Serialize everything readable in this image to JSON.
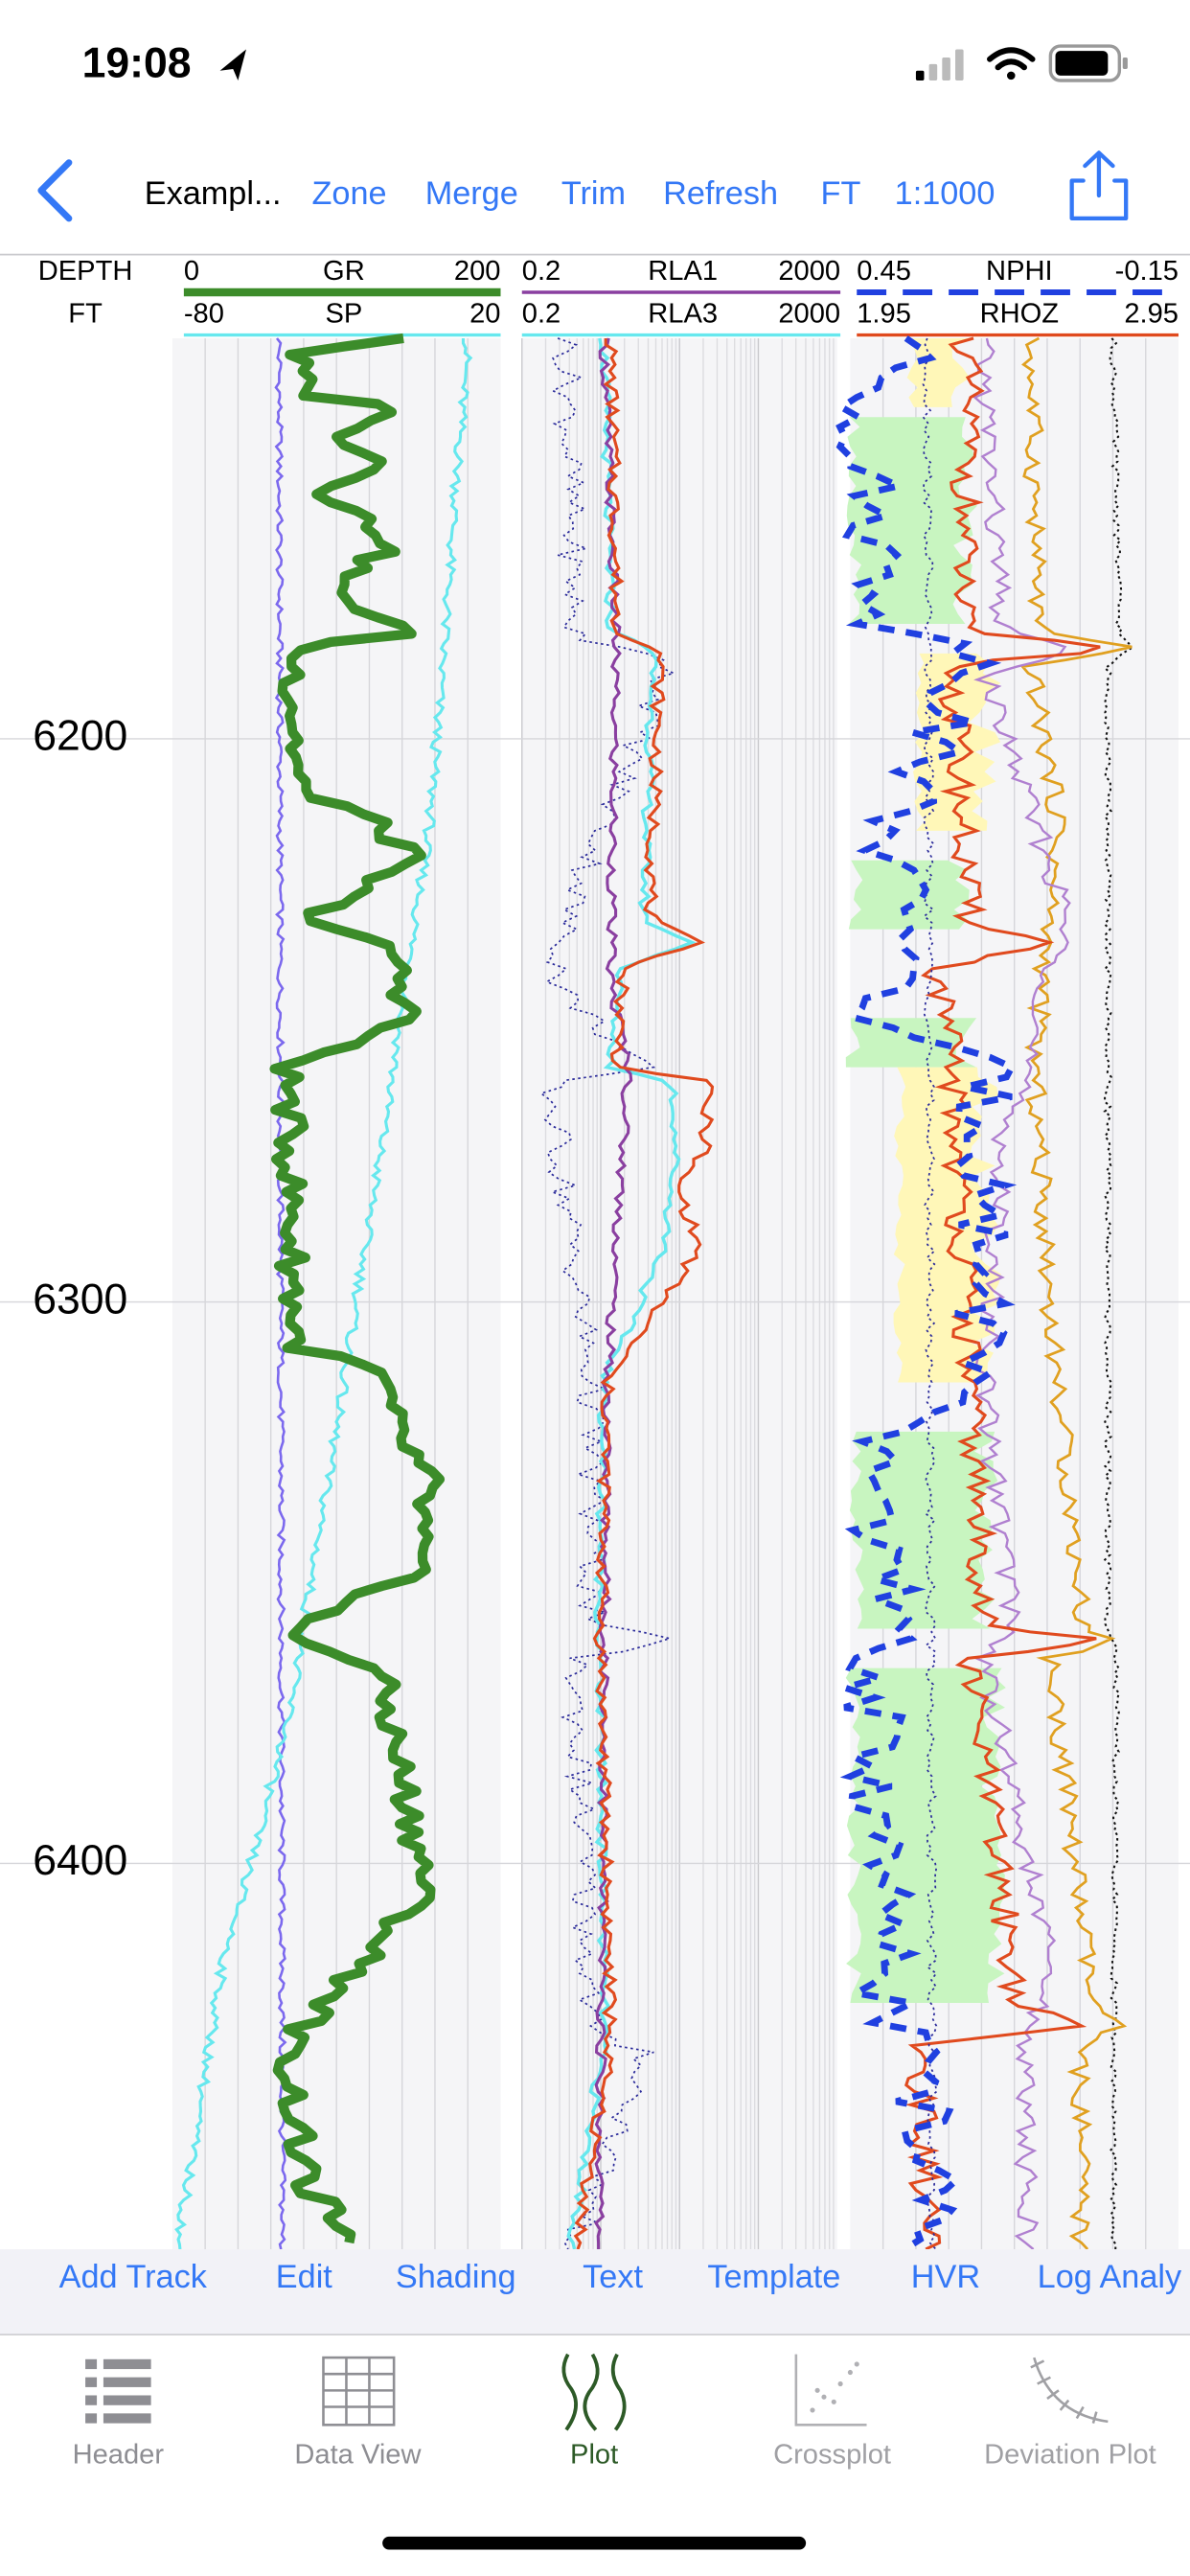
{
  "status_bar": {
    "time": "19:08"
  },
  "nav": {
    "title": "Exampl...",
    "actions": [
      "Zone",
      "Merge",
      "Trim",
      "Refresh",
      "FT",
      "1:1000"
    ]
  },
  "track_headers": {
    "depth": [
      "DEPTH",
      "FT"
    ],
    "tracks": [
      [
        {
          "min": "0",
          "name": "GR",
          "max": "200"
        },
        {
          "min": "-80",
          "name": "SP",
          "max": "20"
        }
      ],
      [
        {
          "min": "0.2",
          "name": "RLA1",
          "max": "2000"
        },
        {
          "min": "0.2",
          "name": "RLA3",
          "max": "2000"
        }
      ],
      [
        {
          "min": "0.45",
          "name": "NPHI",
          "max": "-0.15"
        },
        {
          "min": "1.95",
          "name": "RHOZ",
          "max": "2.95"
        }
      ]
    ]
  },
  "depth_labels": [
    "6200",
    "6300",
    "6400"
  ],
  "toolbar": [
    "Add Track",
    "Edit",
    "Shading",
    "Text",
    "Template",
    "HVR",
    "Log Analy"
  ],
  "tabs": [
    "Header",
    "Data View",
    "Plot",
    "Crossplot",
    "Deviation Plot"
  ]
}
